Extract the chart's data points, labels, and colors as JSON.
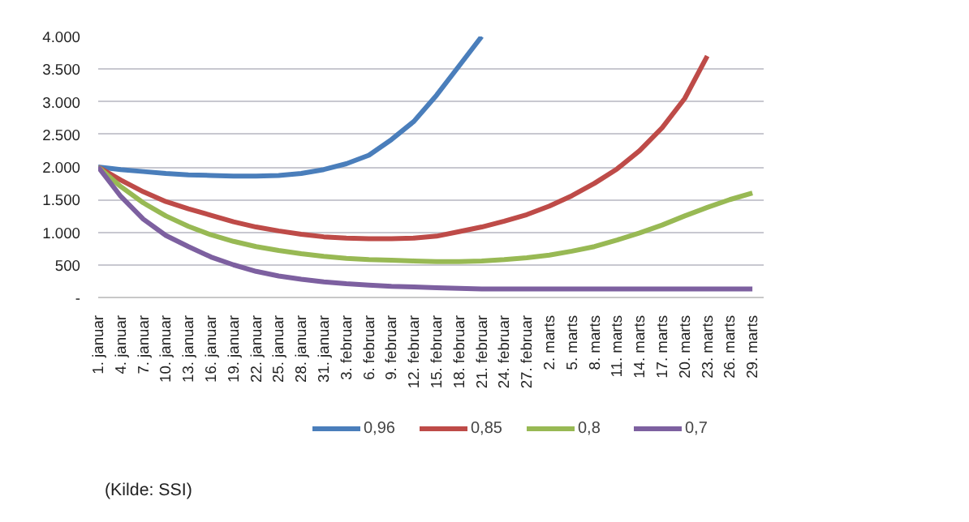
{
  "chart_data": {
    "type": "line",
    "categories": [
      "1. januar",
      "4. januar",
      "7. januar",
      "10. januar",
      "13. januar",
      "16. januar",
      "19. januar",
      "22. januar",
      "25. januar",
      "28. januar",
      "31. januar",
      "3. februar",
      "6. februar",
      "9. februar",
      "12. februar",
      "15. februar",
      "18. februar",
      "21. februar",
      "24. februar",
      "27. februar",
      "2. marts",
      "5. marts",
      "8. marts",
      "11. marts",
      "14. marts",
      "17. marts",
      "20. marts",
      "23. marts",
      "26. marts",
      "29. marts"
    ],
    "series": [
      {
        "name": "0,96",
        "color": "#4a7ebb",
        "values": [
          2000,
          1960,
          1930,
          1900,
          1880,
          1870,
          1860,
          1860,
          1870,
          1900,
          1960,
          2050,
          2180,
          2420,
          2700,
          3100,
          3550,
          4000,
          null,
          null,
          null,
          null,
          null,
          null,
          null,
          null,
          null,
          null,
          null,
          null
        ]
      },
      {
        "name": "0,85",
        "color": "#be4b48",
        "values": [
          2000,
          1800,
          1620,
          1470,
          1360,
          1260,
          1160,
          1080,
          1020,
          970,
          930,
          910,
          900,
          900,
          910,
          940,
          1010,
          1080,
          1170,
          1270,
          1400,
          1560,
          1750,
          1970,
          2250,
          2600,
          3050,
          3700,
          null,
          null
        ]
      },
      {
        "name": "0,8",
        "color": "#98b954",
        "values": [
          2000,
          1700,
          1450,
          1250,
          1090,
          960,
          860,
          780,
          720,
          670,
          630,
          600,
          580,
          570,
          560,
          550,
          550,
          560,
          580,
          610,
          650,
          710,
          780,
          880,
          990,
          1110,
          1250,
          1380,
          1500,
          1600
        ]
      },
      {
        "name": "0,7",
        "color": "#7d60a0",
        "values": [
          2000,
          1550,
          1200,
          950,
          780,
          620,
          500,
          400,
          330,
          280,
          240,
          210,
          190,
          170,
          160,
          150,
          140,
          130,
          130,
          130,
          130,
          130,
          130,
          130,
          130,
          130,
          130,
          130,
          130,
          130
        ]
      }
    ],
    "ylim": [
      0,
      4000
    ],
    "yticks": [
      {
        "value": 0,
        "label": "-"
      },
      500,
      {
        "value": 1000,
        "label": "1.000"
      },
      {
        "value": 1500,
        "label": "1.500"
      },
      {
        "value": 2000,
        "label": "2.000"
      },
      {
        "value": 2500,
        "label": "2.500"
      },
      {
        "value": 3000,
        "label": "3.000"
      },
      {
        "value": 3500,
        "label": "3.500"
      },
      {
        "value": 4000,
        "label": "4.000"
      }
    ],
    "grid": "y",
    "legend": "bottom",
    "marker": "none",
    "line_style": "solid",
    "annotations": [
      "(Kilde: SSI)"
    ]
  }
}
